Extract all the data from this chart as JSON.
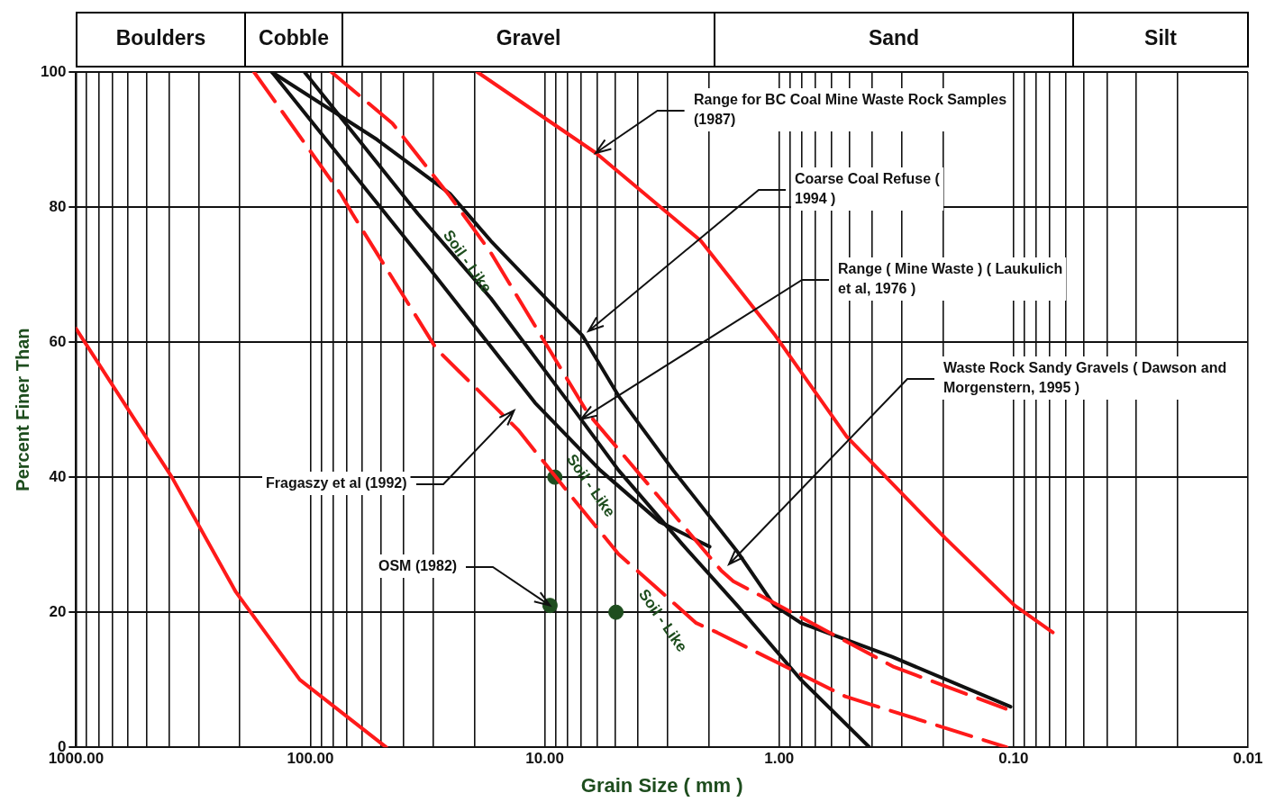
{
  "chart_data": {
    "type": "line",
    "xlabel": "Grain Size ( mm )",
    "ylabel": "Percent Finer Than",
    "log": "x",
    "xlim": [
      1000,
      0.01
    ],
    "ylim": [
      0,
      100
    ],
    "yticks": [
      0,
      20,
      40,
      60,
      80,
      100
    ],
    "xticks": [
      {
        "value": 1000,
        "label": "1000.00"
      },
      {
        "value": 900,
        "label": null
      },
      {
        "value": 800,
        "label": null
      },
      {
        "value": 700,
        "label": null
      },
      {
        "value": 600,
        "label": null
      },
      {
        "value": 500,
        "label": null
      },
      {
        "value": 400,
        "label": null
      },
      {
        "value": 300,
        "label": null
      },
      {
        "value": 200,
        "label": null
      },
      {
        "value": 100,
        "label": "100.00"
      },
      {
        "value": 90,
        "label": null
      },
      {
        "value": 80,
        "label": null
      },
      {
        "value": 70,
        "label": null
      },
      {
        "value": 60,
        "label": null
      },
      {
        "value": 50,
        "label": null
      },
      {
        "value": 40,
        "label": null
      },
      {
        "value": 30,
        "label": null
      },
      {
        "value": 20,
        "label": null
      },
      {
        "value": 10,
        "label": "10.00"
      },
      {
        "value": 9,
        "label": null
      },
      {
        "value": 8,
        "label": null
      },
      {
        "value": 7,
        "label": null
      },
      {
        "value": 6,
        "label": null
      },
      {
        "value": 5,
        "label": null
      },
      {
        "value": 4,
        "label": null
      },
      {
        "value": 3,
        "label": null
      },
      {
        "value": 2,
        "label": null
      },
      {
        "value": 1,
        "label": "1.00"
      },
      {
        "value": 0.9,
        "label": null
      },
      {
        "value": 0.8,
        "label": null
      },
      {
        "value": 0.7,
        "label": null
      },
      {
        "value": 0.6,
        "label": null
      },
      {
        "value": 0.5,
        "label": null
      },
      {
        "value": 0.4,
        "label": null
      },
      {
        "value": 0.3,
        "label": null
      },
      {
        "value": 0.2,
        "label": null
      },
      {
        "value": 0.1,
        "label": "0.10"
      },
      {
        "value": 0.09,
        "label": null
      },
      {
        "value": 0.08,
        "label": null
      },
      {
        "value": 0.07,
        "label": null
      },
      {
        "value": 0.06,
        "label": null
      },
      {
        "value": 0.05,
        "label": null
      },
      {
        "value": 0.04,
        "label": null
      },
      {
        "value": 0.03,
        "label": null
      },
      {
        "value": 0.02,
        "label": null
      },
      {
        "value": 0.01,
        "label": "0.01"
      }
    ],
    "grid": true,
    "legend": false,
    "series": [
      {
        "color": "#ff1a1a",
        "line_style": "solid",
        "x": [
          1000,
          390,
          208,
          111,
          47.5
        ],
        "values": [
          62,
          40,
          23,
          10,
          0
        ]
      },
      {
        "color": "#ff1a1a",
        "line_style": "solid",
        "x": [
          19.4,
          6.05,
          2.16,
          1.04,
          0.515,
          0.196,
          0.099,
          0.068
        ],
        "values": [
          100,
          88,
          75,
          61,
          46,
          31,
          21,
          17
        ]
      },
      {
        "color": "#ff1a1a",
        "line_style": "dashed",
        "x": [
          174,
          74.4,
          66.2,
          29,
          13,
          8.28,
          4.84,
          2.26,
          1.84,
          0.52,
          0.107
        ],
        "values": [
          100,
          82,
          79,
          59,
          47,
          38.5,
          28.6,
          18.4,
          17,
          7.5,
          0
        ]
      },
      {
        "color": "#ff1a1a",
        "line_style": "dashed",
        "x": [
          81.4,
          44.7,
          25.4,
          17.1,
          6.56,
          1.77,
          1.57,
          0.324,
          0.108
        ],
        "values": [
          100,
          92.4,
          81.6,
          73.4,
          49.5,
          26.2,
          24.6,
          11.9,
          5.7
        ]
      },
      {
        "color": "#111111",
        "line_style": "solid",
        "x": [
          146,
          52,
          25.4,
          17,
          9.9,
          6.92,
          4.84,
          2.83,
          1.51,
          1.05,
          0.807,
          0.33,
          0.103
        ],
        "values": [
          100,
          90,
          82,
          75,
          66.5,
          61,
          52,
          41,
          29,
          21,
          18.4,
          13.4,
          6
        ]
      },
      {
        "color": "#111111",
        "line_style": "solid",
        "x": [
          106,
          34.8,
          17,
          8.28,
          4.84,
          2.58,
          1.51,
          0.807,
          0.412
        ],
        "values": [
          100,
          79,
          66.5,
          52,
          41,
          30,
          21,
          10,
          0
        ]
      },
      {
        "color": "#111111",
        "line_style": "solid",
        "x": [
          146,
          31.2,
          11,
          5.79,
          3.24,
          1.98
        ],
        "values": [
          100,
          71,
          51,
          41,
          33.4,
          29.7
        ]
      },
      {
        "type": "scatter",
        "color": "#1e4d1e",
        "marker": "circle",
        "x": [
          9.06,
          9.5,
          4.97
        ],
        "values": [
          40,
          21,
          20
        ]
      }
    ],
    "annotations": [
      {
        "text": "Range for BC Coal Mine Waste Rock Samples (1987)",
        "x": 6.05,
        "y": 88
      },
      "Coarse Coal Refuse ( 1994 )",
      {
        "text": "Range ( Mine Waste ) ( Laukulich et al, 1976 )",
        "x": 7,
        "y": 48.6
      },
      "Waste Rock Sandy Gravels ( Dawson and Morgenstern, 1995 )",
      "Fragaszy et al (1992)",
      {
        "text": "OSM (1982)",
        "x": 9.5,
        "y": 21
      },
      "Soil - Like",
      "Soil - Like",
      "Soil - Like",
      "Boulders",
      "Cobble",
      "Gravel",
      "Sand",
      "Silt"
    ]
  }
}
